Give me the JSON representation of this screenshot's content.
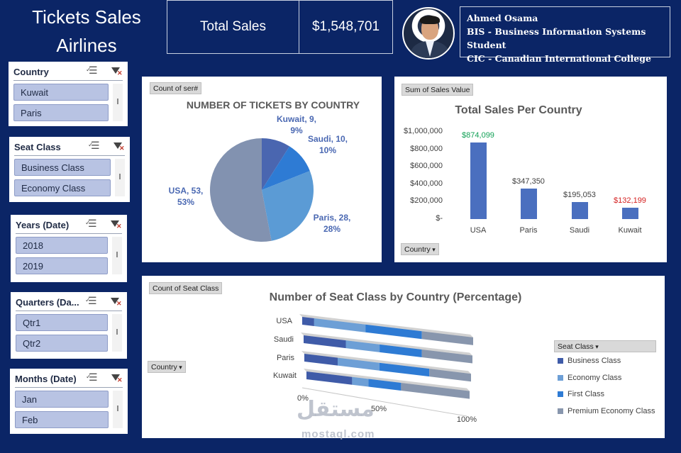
{
  "header": {
    "title_line1": "Tickets Sales",
    "title_line2": "Airlines",
    "total_sales_label": "Total Sales",
    "total_sales_value": "$1,548,701"
  },
  "profile": {
    "name": "Ahmed Osama",
    "role": "BIS - Business Information Systems Student",
    "college": "CIC - Canadian International College"
  },
  "slicers": [
    {
      "title": "Country",
      "items": [
        "Kuwait",
        "Paris"
      ]
    },
    {
      "title": "Seat Class",
      "items": [
        "Business Class",
        "Economy Class"
      ]
    },
    {
      "title": "Years (Date)",
      "items": [
        "2018",
        "2019"
      ]
    },
    {
      "title": "Quarters (Da...",
      "items": [
        "Qtr1",
        "Qtr2"
      ]
    },
    {
      "title": "Months (Date)",
      "items": [
        "Jan",
        "Feb"
      ]
    }
  ],
  "colors": {
    "background": "#0b2566",
    "bar": "#4a6fbf",
    "highest_label": "#10a055",
    "lowest_label": "#d42020",
    "business": "#3f5ba8",
    "economy": "#6d9fd6",
    "first": "#2e7bd4",
    "premium_economy": "#8896ad"
  },
  "pie_panel": {
    "field_button": "Count of ser#",
    "title": "NUMBER OF TICKETS BY COUNTRY",
    "labels": [
      {
        "line1": "Kuwait, 9,",
        "line2": "9%"
      },
      {
        "line1": "Saudi, 10,",
        "line2": "10%"
      },
      {
        "line1": "Paris, 28,",
        "line2": "28%"
      },
      {
        "line1": "USA, 53,",
        "line2": "53%"
      }
    ]
  },
  "bar_panel": {
    "field_button": "Sum of Sales Value",
    "title": "Total Sales Per Country",
    "axis_button": "Country",
    "y_ticks": [
      "$1,000,000",
      "$800,000",
      "$600,000",
      "$400,000",
      "$200,000",
      "$-"
    ],
    "data_labels": [
      "$874,099",
      "$347,350",
      "$195,053",
      "$132,199"
    ]
  },
  "stack_panel": {
    "field_button": "Count of Seat Class",
    "title": "Number of Seat Class by Country (Percentage)",
    "axis_button": "Country",
    "legend_button": "Seat Class",
    "x_ticks": [
      "0%",
      "50%",
      "100%"
    ]
  },
  "watermark": {
    "main": "مستقل",
    "sub": "mostaql.com"
  },
  "chart_data": [
    {
      "type": "pie",
      "title": "NUMBER OF TICKETS BY COUNTRY",
      "categories": [
        "Kuwait",
        "Saudi",
        "Paris",
        "USA"
      ],
      "values": [
        9,
        10,
        28,
        53
      ],
      "percentages": [
        9,
        10,
        28,
        53
      ],
      "colors": [
        "#4a66b0",
        "#2e7bd4",
        "#5b9bd5",
        "#8292b0"
      ]
    },
    {
      "type": "bar",
      "title": "Total Sales Per Country",
      "categories": [
        "USA",
        "Paris",
        "Saudi",
        "Kuwait"
      ],
      "values": [
        874099,
        347350,
        195053,
        132199
      ],
      "ylim": [
        0,
        1000000
      ],
      "grid": false
    },
    {
      "type": "bar",
      "orientation": "horizontal-stacked-percent",
      "title": "Number of Seat Class by Country (Percentage)",
      "categories": [
        "USA",
        "Saudi",
        "Paris",
        "Kuwait"
      ],
      "series": [
        {
          "name": "Business Class",
          "values": [
            7,
            25,
            20,
            28
          ]
        },
        {
          "name": "Economy Class",
          "values": [
            30,
            20,
            25,
            10
          ]
        },
        {
          "name": "First Class",
          "values": [
            33,
            25,
            30,
            20
          ]
        },
        {
          "name": "Premium Economy Class",
          "values": [
            30,
            30,
            25,
            42
          ]
        }
      ],
      "xlim": [
        0,
        100
      ],
      "legend": "right"
    }
  ]
}
